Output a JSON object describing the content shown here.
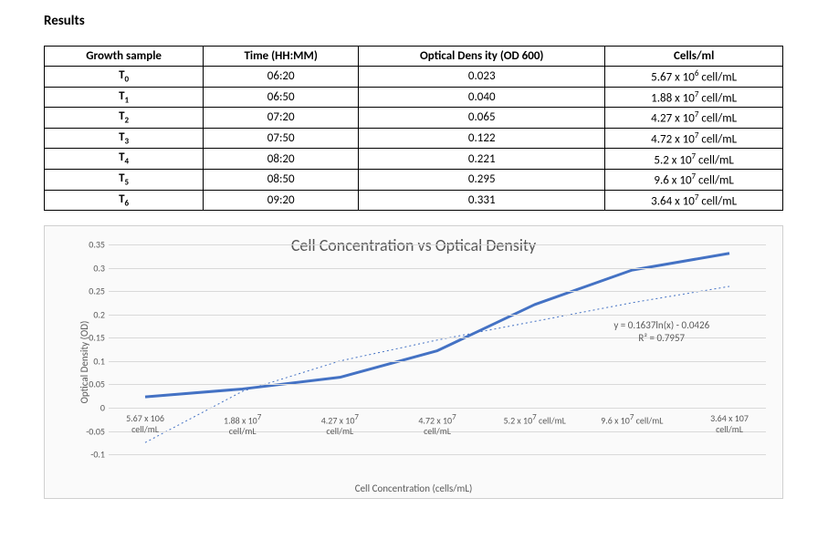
{
  "heading": "Results",
  "table": {
    "columns": [
      "Growth sample",
      "Time (HH:MM)",
      "Optical Dens ity (OD 600)",
      "Cells/ml"
    ],
    "rows": [
      {
        "sample_base": "T",
        "sample_sub": "0",
        "time": "06:20",
        "od": "0.023",
        "cells_coef": "5.67",
        "cells_exp": "6",
        "cells_unit": "cell/mL"
      },
      {
        "sample_base": "T",
        "sample_sub": "1",
        "time": "06:50",
        "od": "0.040",
        "cells_coef": "1.88",
        "cells_exp": "7",
        "cells_unit": "cell/mL"
      },
      {
        "sample_base": "T",
        "sample_sub": "2",
        "time": "07:20",
        "od": "0.065",
        "cells_coef": "4.27",
        "cells_exp": "7",
        "cells_unit": "cell/mL"
      },
      {
        "sample_base": "T",
        "sample_sub": "3",
        "time": "07:50",
        "od": "0.122",
        "cells_coef": "4.72",
        "cells_exp": "7",
        "cells_unit": "cell/mL"
      },
      {
        "sample_base": "T",
        "sample_sub": "4",
        "time": "08:20",
        "od": "0.221",
        "cells_coef": "5.2",
        "cells_exp": "7",
        "cells_unit": "cell/mL"
      },
      {
        "sample_base": "T",
        "sample_sub": "5",
        "time": "08:50",
        "od": "0.295",
        "cells_coef": "9.6",
        "cells_exp": "7",
        "cells_unit": "cell/mL"
      },
      {
        "sample_base": "T",
        "sample_sub": "6",
        "time": "09:20",
        "od": "0.331",
        "cells_coef": "3.64",
        "cells_exp": "7",
        "cells_unit": "cell/mL"
      }
    ]
  },
  "chart": {
    "type": "line",
    "title": "Cell Concentration vs Optical Density",
    "y_label": "Optical Density (OD)",
    "x_label": "Cell Concentration (cells/mL)",
    "ylim": [
      -0.1,
      0.35
    ],
    "ytick_step": 0.05,
    "y_ticks": [
      "-0.1",
      "-0.05",
      "0",
      "0.05",
      "0.1",
      "0.15",
      "0.2",
      "0.25",
      "0.3",
      "0.35"
    ],
    "background_color": "#fafafa",
    "border_color": "#d0d0d0",
    "grid_color": "#d9d9d9",
    "text_color": "#595959",
    "series_color": "#4472c4",
    "series_width": 3,
    "trend_color": "#4472c4",
    "trend_dash": "2,3",
    "trend_width": 1,
    "x_categories": [
      {
        "coef": "5.67",
        "base": "106",
        "sup": "",
        "unit": "cell/mL"
      },
      {
        "coef": "1.88",
        "base": "10",
        "sup": "7",
        "unit": "cell/mL"
      },
      {
        "coef": "4.27",
        "base": "10",
        "sup": "7",
        "unit": "cell/mL"
      },
      {
        "coef": "4.72",
        "base": "10",
        "sup": "7",
        "unit": "cell/mL"
      },
      {
        "coef": "5.2",
        "base": "10",
        "sup": "7",
        "unit": "cell/mL",
        "inline": true
      },
      {
        "coef": "9.6",
        "base": "10",
        "sup": "7",
        "unit": "cell/mL",
        "inline": true
      },
      {
        "coef": "3.64",
        "base": "107",
        "sup": "",
        "unit": "cell/mL"
      }
    ],
    "y_series": [
      0.023,
      0.04,
      0.065,
      0.122,
      0.221,
      0.295,
      0.331
    ],
    "trend_series": [
      -0.075,
      0.035,
      0.1,
      0.145,
      0.185,
      0.225,
      0.26
    ],
    "annotation": {
      "line1": "y = 0.1637ln(x) - 0.0426",
      "line2": "R² = 0.7957"
    }
  }
}
